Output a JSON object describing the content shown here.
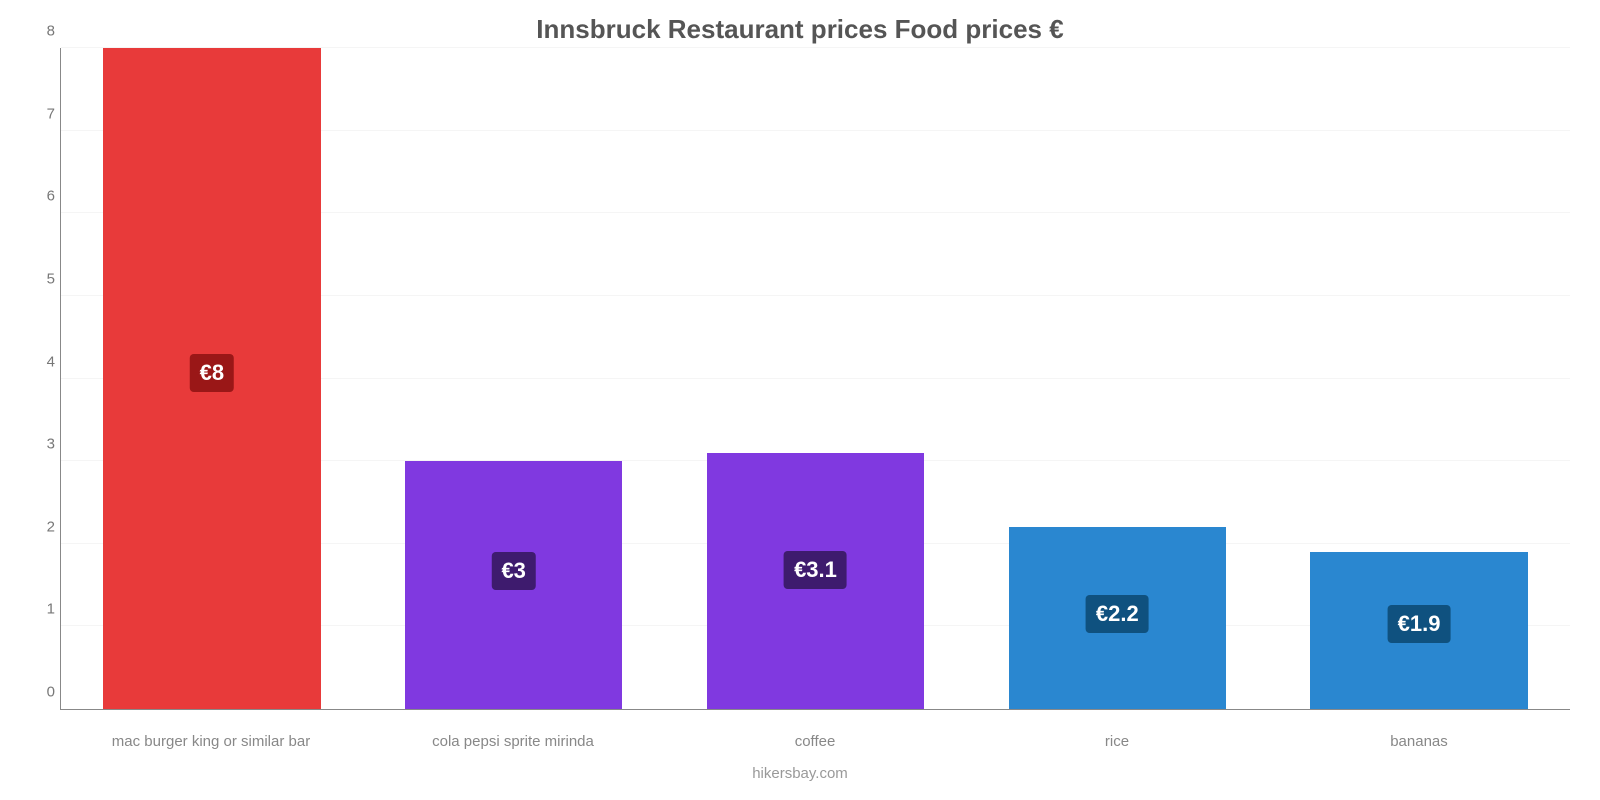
{
  "chart": {
    "type": "bar",
    "title": "Innsbruck Restaurant prices Food prices €",
    "title_fontsize": 26,
    "title_color": "#555555",
    "source": "hikersbay.com",
    "background_color": "#ffffff",
    "grid_color": "#f5f5f5",
    "axis_color": "#888888",
    "tick_color": "#777777",
    "tick_fontsize": 15,
    "xlabel_fontsize": 15,
    "xlabel_color": "#888888",
    "ylim": [
      0,
      8
    ],
    "ytick_step": 1,
    "bar_width_pct": 72,
    "badge_fontsize": 22,
    "badge_radius": 4,
    "categories": [
      "mac burger king or similar bar",
      "cola pepsi sprite mirinda",
      "coffee",
      "rice",
      "bananas"
    ],
    "values": [
      8,
      3,
      3.1,
      2.2,
      1.9
    ],
    "value_labels": [
      "€8",
      "€3",
      "€3.1",
      "€2.2",
      "€1.9"
    ],
    "bar_colors": [
      "#e83a3a",
      "#8039e0",
      "#8039e0",
      "#2a87d0",
      "#2a87d0"
    ],
    "badge_colors": [
      "#9a1717",
      "#3e1b6e",
      "#3e1b6e",
      "#0f517f",
      "#0f517f"
    ],
    "badge_bottom_pct": [
      48,
      48,
      47,
      42,
      42
    ]
  }
}
